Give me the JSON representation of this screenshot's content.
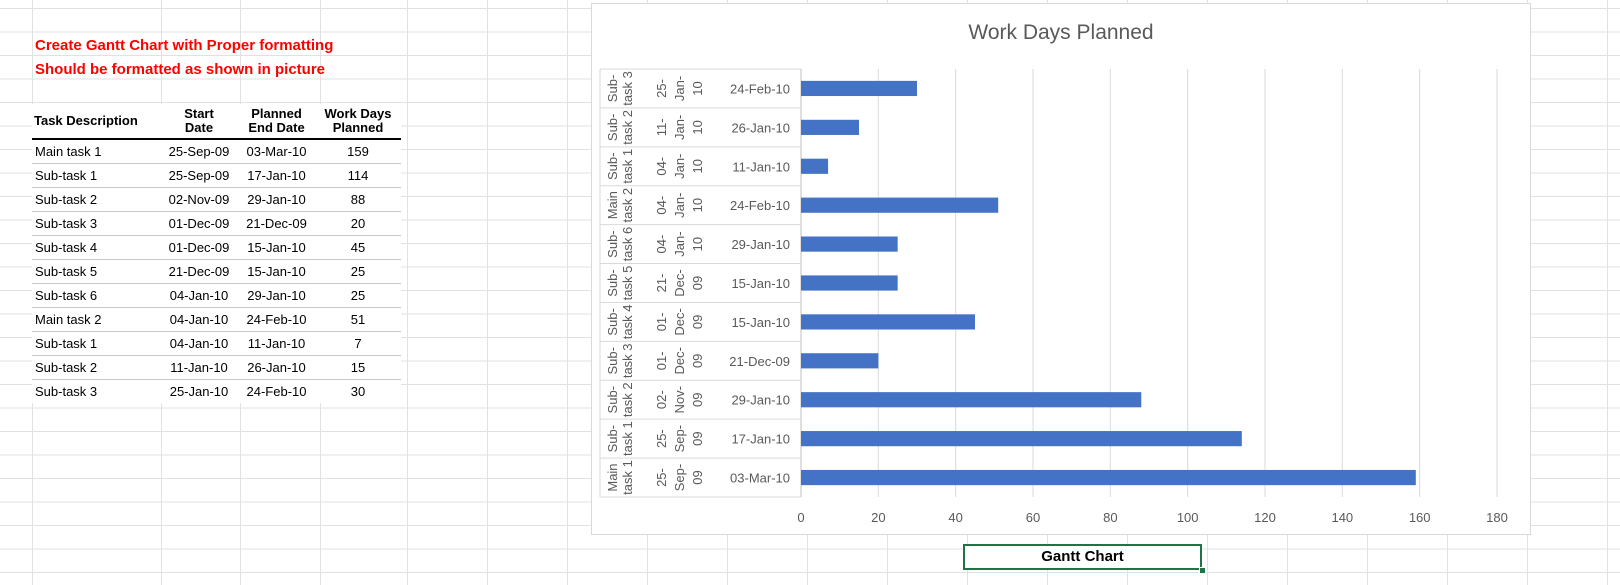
{
  "notes": {
    "line1": "Create Gantt Chart with Proper formatting",
    "line2": "Should be formatted as shown in picture"
  },
  "table": {
    "headers": {
      "task_description": "Task Description",
      "start_date_line1": "Start",
      "start_date_line2": "Date",
      "planned_end_line1": "Planned",
      "planned_end_line2": "End Date",
      "work_days_line1": "Work Days",
      "work_days_line2": "Planned"
    },
    "rows": [
      {
        "task": "Main task 1",
        "start": "25-Sep-09",
        "end": "03-Mar-10",
        "days": "159"
      },
      {
        "task": "Sub-task 1",
        "start": "25-Sep-09",
        "end": "17-Jan-10",
        "days": "114"
      },
      {
        "task": "Sub-task 2",
        "start": "02-Nov-09",
        "end": "29-Jan-10",
        "days": "88"
      },
      {
        "task": "Sub-task 3",
        "start": "01-Dec-09",
        "end": "21-Dec-09",
        "days": "20"
      },
      {
        "task": "Sub-task 4",
        "start": "01-Dec-09",
        "end": "15-Jan-10",
        "days": "45"
      },
      {
        "task": "Sub-task 5",
        "start": "21-Dec-09",
        "end": "15-Jan-10",
        "days": "25"
      },
      {
        "task": "Sub-task 6",
        "start": "04-Jan-10",
        "end": "29-Jan-10",
        "days": "25"
      },
      {
        "task": "Main task 2",
        "start": "04-Jan-10",
        "end": "24-Feb-10",
        "days": "51"
      },
      {
        "task": "Sub-task 1",
        "start": "04-Jan-10",
        "end": "11-Jan-10",
        "days": "7"
      },
      {
        "task": "Sub-task 2",
        "start": "11-Jan-10",
        "end": "26-Jan-10",
        "days": "15"
      },
      {
        "task": "Sub-task 3",
        "start": "25-Jan-10",
        "end": "24-Feb-10",
        "days": "30"
      }
    ]
  },
  "chart_data": {
    "type": "bar",
    "orientation": "horizontal",
    "title": "Work Days Planned",
    "xlabel": "",
    "ylabel": "",
    "xlim": [
      0,
      180
    ],
    "x_ticks": [
      0,
      20,
      40,
      60,
      80,
      100,
      120,
      140,
      160,
      180
    ],
    "grid": true,
    "legend": "none",
    "bar_color": "#4472C4",
    "categories_bottom_to_top": [
      {
        "task_line1": "Main",
        "task_line2": "task 1",
        "start_line1": "25-",
        "start_line2": "Sep-",
        "start_line3": "09",
        "end": "03-Mar-10"
      },
      {
        "task_line1": "Sub-",
        "task_line2": "task 1",
        "start_line1": "25-",
        "start_line2": "Sep-",
        "start_line3": "09",
        "end": "17-Jan-10"
      },
      {
        "task_line1": "Sub-",
        "task_line2": "task 2",
        "start_line1": "02-",
        "start_line2": "Nov-",
        "start_line3": "09",
        "end": "29-Jan-10"
      },
      {
        "task_line1": "Sub-",
        "task_line2": "task 3",
        "start_line1": "01-",
        "start_line2": "Dec-",
        "start_line3": "09",
        "end": "21-Dec-09"
      },
      {
        "task_line1": "Sub-",
        "task_line2": "task 4",
        "start_line1": "01-",
        "start_line2": "Dec-",
        "start_line3": "09",
        "end": "15-Jan-10"
      },
      {
        "task_line1": "Sub-",
        "task_line2": "task 5",
        "start_line1": "21-",
        "start_line2": "Dec-",
        "start_line3": "09",
        "end": "15-Jan-10"
      },
      {
        "task_line1": "Sub-",
        "task_line2": "task 6",
        "start_line1": "04-",
        "start_line2": "Jan-",
        "start_line3": "10",
        "end": "29-Jan-10"
      },
      {
        "task_line1": "Main",
        "task_line2": "task 2",
        "start_line1": "04-",
        "start_line2": "Jan-",
        "start_line3": "10",
        "end": "24-Feb-10"
      },
      {
        "task_line1": "Sub-",
        "task_line2": "task 1",
        "start_line1": "04-",
        "start_line2": "Jan-",
        "start_line3": "10",
        "end": "11-Jan-10"
      },
      {
        "task_line1": "Sub-",
        "task_line2": "task 2",
        "start_line1": "11-",
        "start_line2": "Jan-",
        "start_line3": "10",
        "end": "26-Jan-10"
      },
      {
        "task_line1": "Sub-",
        "task_line2": "task 3",
        "start_line1": "25-",
        "start_line2": "Jan-",
        "start_line3": "10",
        "end": "24-Feb-10"
      }
    ],
    "values_bottom_to_top": [
      159,
      114,
      88,
      20,
      45,
      25,
      25,
      51,
      7,
      15,
      30
    ]
  },
  "cell_label": "Gantt Chart"
}
